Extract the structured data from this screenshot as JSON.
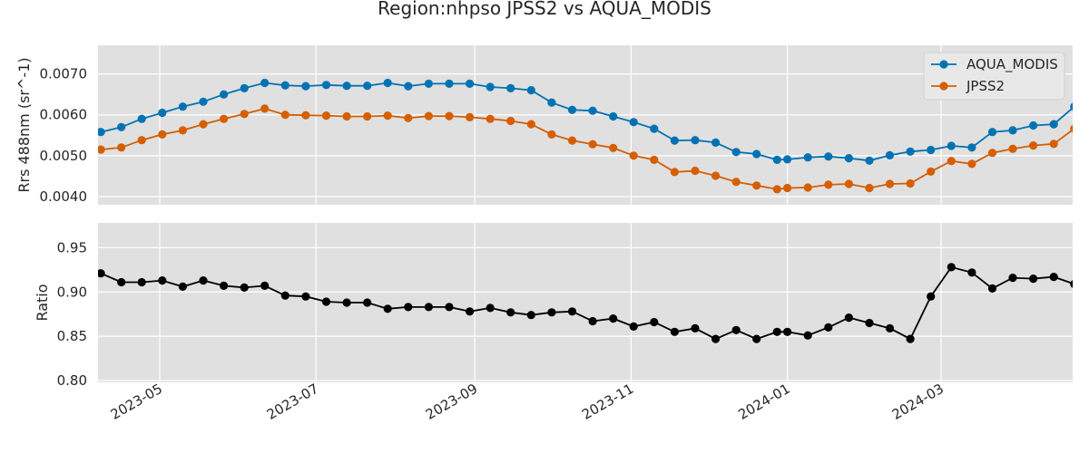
{
  "chart_data": {
    "type": "line",
    "title": "Region:nhpso JPSS2 vs AQUA_MODIS",
    "grid": true,
    "x_tick_labels": [
      "2023-05",
      "2023-07",
      "2023-09",
      "2023-11",
      "2024-01",
      "2024-03"
    ],
    "dates": [
      "2023-04-08",
      "2023-04-16",
      "2023-04-24",
      "2023-05-02",
      "2023-05-10",
      "2023-05-18",
      "2023-05-26",
      "2023-06-03",
      "2023-06-11",
      "2023-06-19",
      "2023-06-27",
      "2023-07-05",
      "2023-07-13",
      "2023-07-21",
      "2023-07-29",
      "2023-08-06",
      "2023-08-14",
      "2023-08-22",
      "2023-08-30",
      "2023-09-07",
      "2023-09-15",
      "2023-09-23",
      "2023-10-01",
      "2023-10-09",
      "2023-10-17",
      "2023-10-25",
      "2023-11-02",
      "2023-11-10",
      "2023-11-18",
      "2023-11-26",
      "2023-12-04",
      "2023-12-12",
      "2023-12-20",
      "2023-12-28",
      "2024-01-01",
      "2024-01-09",
      "2024-01-17",
      "2024-01-25",
      "2024-02-02",
      "2024-02-10",
      "2024-02-18",
      "2024-02-26",
      "2024-03-05",
      "2024-03-13",
      "2024-03-21",
      "2024-03-29",
      "2024-04-06",
      "2024-04-14",
      "2024-04-22"
    ],
    "panels": [
      {
        "ylabel": "Rrs 488nm (sr^-1)",
        "ylim": [
          0.0038,
          0.0077
        ],
        "yticks": [
          0.004,
          0.005,
          0.006,
          0.007
        ],
        "ytick_labels": [
          "0.0040",
          "0.0050",
          "0.0060",
          "0.0070"
        ],
        "legend": "top-right",
        "series": [
          {
            "name": "AQUA_MODIS",
            "color": "#0072b2",
            "values": [
              0.00558,
              0.0057,
              0.0059,
              0.00605,
              0.0062,
              0.00632,
              0.0065,
              0.00665,
              0.00678,
              0.00672,
              0.0067,
              0.00673,
              0.00671,
              0.00671,
              0.00678,
              0.0067,
              0.00676,
              0.00676,
              0.00676,
              0.00668,
              0.00665,
              0.0066,
              0.0063,
              0.00612,
              0.0061,
              0.00596,
              0.00582,
              0.00566,
              0.00537,
              0.00538,
              0.00532,
              0.00509,
              0.00504,
              0.0049,
              0.00491,
              0.00496,
              0.00498,
              0.00494,
              0.00488,
              0.00501,
              0.0051,
              0.00514,
              0.00524,
              0.0052,
              0.00558,
              0.00562,
              0.00574,
              0.00577,
              0.0062
            ]
          },
          {
            "name": "JPSS2",
            "color": "#d55e00",
            "values": [
              0.00515,
              0.0052,
              0.00538,
              0.00552,
              0.00562,
              0.00577,
              0.0059,
              0.00602,
              0.00615,
              0.006,
              0.00599,
              0.00598,
              0.00596,
              0.00596,
              0.00598,
              0.00592,
              0.00597,
              0.00597,
              0.00594,
              0.0059,
              0.00585,
              0.00577,
              0.00552,
              0.00537,
              0.00528,
              0.00519,
              0.005,
              0.0049,
              0.0046,
              0.00463,
              0.00451,
              0.00436,
              0.00427,
              0.00418,
              0.00421,
              0.00422,
              0.00429,
              0.00431,
              0.00421,
              0.00431,
              0.00432,
              0.00461,
              0.00487,
              0.0048,
              0.00507,
              0.00517,
              0.00525,
              0.00529,
              0.00566
            ]
          }
        ]
      },
      {
        "ylabel": "Ratio",
        "ylim": [
          0.798,
          0.978
        ],
        "yticks": [
          0.8,
          0.85,
          0.9,
          0.95
        ],
        "ytick_labels": [
          "0.80",
          "0.85",
          "0.90",
          "0.95"
        ],
        "series": [
          {
            "color": "#000000",
            "values": [
              0.921,
              0.911,
              0.911,
              0.913,
              0.906,
              0.913,
              0.907,
              0.905,
              0.907,
              0.896,
              0.895,
              0.889,
              0.888,
              0.888,
              0.881,
              0.883,
              0.883,
              0.883,
              0.878,
              0.882,
              0.877,
              0.874,
              0.877,
              0.878,
              0.867,
              0.87,
              0.861,
              0.866,
              0.855,
              0.859,
              0.847,
              0.857,
              0.847,
              0.855,
              0.855,
              0.851,
              0.86,
              0.871,
              0.865,
              0.859,
              0.847,
              0.895,
              0.928,
              0.922,
              0.904,
              0.916,
              0.915,
              0.917,
              0.909
            ]
          }
        ]
      }
    ]
  }
}
